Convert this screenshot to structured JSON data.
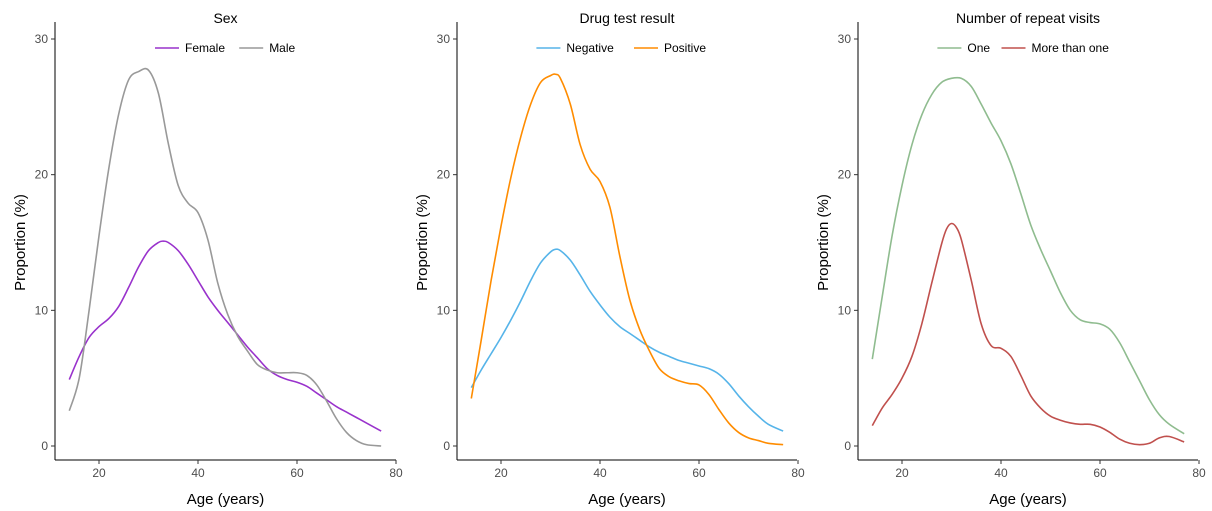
{
  "chart_data": [
    {
      "type": "line",
      "title": "Sex",
      "xlabel": "Age (years)",
      "ylabel": "Proportion (%)",
      "xlim": [
        12,
        80
      ],
      "ylim": [
        0,
        30
      ],
      "xticks": [
        20,
        40,
        60,
        80
      ],
      "yticks": [
        0,
        10,
        20,
        30
      ],
      "grid": false,
      "legend_position": "top",
      "series": [
        {
          "name": "Female",
          "color": "#9932cc",
          "x": [
            14,
            16,
            18,
            20,
            22,
            24,
            26,
            28,
            30,
            32,
            33,
            34,
            36,
            38,
            40,
            42,
            44,
            46,
            48,
            50,
            52,
            54,
            56,
            58,
            60,
            62,
            64,
            66,
            68,
            70,
            72,
            74,
            77
          ],
          "y": [
            4.9,
            6.6,
            8.0,
            8.8,
            9.4,
            10.3,
            11.7,
            13.2,
            14.4,
            15.0,
            15.1,
            15.0,
            14.4,
            13.4,
            12.2,
            11.0,
            10.0,
            9.1,
            8.2,
            7.3,
            6.5,
            5.7,
            5.2,
            4.9,
            4.7,
            4.4,
            3.9,
            3.4,
            2.9,
            2.5,
            2.1,
            1.7,
            1.1
          ]
        },
        {
          "name": "Male",
          "color": "#999999",
          "x": [
            14,
            16,
            18,
            20,
            22,
            24,
            26,
            28,
            30,
            32,
            34,
            36,
            38,
            40,
            42,
            44,
            46,
            48,
            50,
            52,
            54,
            56,
            58,
            60,
            62,
            64,
            66,
            68,
            70,
            72,
            74,
            77
          ],
          "y": [
            2.6,
            5.0,
            10.0,
            15.5,
            20.5,
            24.5,
            27.0,
            27.6,
            27.7,
            26.0,
            22.3,
            19.2,
            17.9,
            17.2,
            15.2,
            12.0,
            9.7,
            8.1,
            7.0,
            6.0,
            5.6,
            5.4,
            5.4,
            5.4,
            5.2,
            4.5,
            3.3,
            2.0,
            1.0,
            0.4,
            0.1,
            0.0
          ]
        }
      ]
    },
    {
      "type": "line",
      "title": "Drug test result",
      "xlabel": "Age (years)",
      "ylabel": "Proportion (%)",
      "xlim": [
        12,
        80
      ],
      "ylim": [
        0,
        30
      ],
      "xticks": [
        20,
        40,
        60,
        80
      ],
      "yticks": [
        0,
        10,
        20,
        30
      ],
      "grid": false,
      "legend_position": "top",
      "series": [
        {
          "name": "Negative",
          "color": "#56b4e9",
          "x": [
            14,
            16,
            18,
            20,
            22,
            24,
            26,
            28,
            30,
            31,
            32,
            34,
            36,
            38,
            40,
            42,
            44,
            46,
            48,
            50,
            52,
            54,
            56,
            58,
            60,
            62,
            64,
            66,
            68,
            70,
            72,
            74,
            77
          ],
          "y": [
            4.3,
            5.6,
            6.8,
            8.0,
            9.3,
            10.7,
            12.2,
            13.5,
            14.3,
            14.5,
            14.4,
            13.7,
            12.6,
            11.4,
            10.4,
            9.5,
            8.8,
            8.3,
            7.8,
            7.3,
            6.9,
            6.6,
            6.3,
            6.1,
            5.9,
            5.7,
            5.3,
            4.6,
            3.7,
            2.9,
            2.2,
            1.6,
            1.1
          ]
        },
        {
          "name": "Positive",
          "color": "#ff8c00",
          "x": [
            14,
            16,
            18,
            20,
            22,
            24,
            26,
            28,
            30,
            31,
            32,
            34,
            36,
            38,
            40,
            42,
            44,
            46,
            48,
            50,
            52,
            54,
            56,
            58,
            60,
            62,
            64,
            66,
            68,
            70,
            72,
            74,
            77
          ],
          "y": [
            3.5,
            7.8,
            12.2,
            16.2,
            19.8,
            22.8,
            25.2,
            26.8,
            27.3,
            27.4,
            27.1,
            25.2,
            22.2,
            20.4,
            19.5,
            17.6,
            14.0,
            10.8,
            8.6,
            7.0,
            5.7,
            5.1,
            4.8,
            4.6,
            4.5,
            3.8,
            2.7,
            1.7,
            1.0,
            0.6,
            0.4,
            0.2,
            0.1
          ]
        }
      ]
    },
    {
      "type": "line",
      "title": "Number of repeat visits",
      "xlabel": "Age (years)",
      "ylabel": "Proportion (%)",
      "xlim": [
        12,
        80
      ],
      "ylim": [
        0,
        30
      ],
      "xticks": [
        20,
        40,
        60,
        80
      ],
      "yticks": [
        0,
        10,
        20,
        30
      ],
      "grid": false,
      "legend_position": "top",
      "series": [
        {
          "name": "One",
          "color": "#8fbc8f",
          "x": [
            14,
            16,
            18,
            20,
            22,
            24,
            26,
            28,
            30,
            32,
            34,
            36,
            38,
            40,
            42,
            44,
            46,
            48,
            50,
            52,
            54,
            56,
            58,
            60,
            62,
            64,
            66,
            68,
            70,
            72,
            74,
            77
          ],
          "y": [
            6.4,
            11.0,
            15.5,
            19.2,
            22.2,
            24.4,
            25.9,
            26.8,
            27.1,
            27.1,
            26.5,
            25.2,
            23.8,
            22.5,
            20.8,
            18.6,
            16.3,
            14.5,
            12.9,
            11.3,
            10.0,
            9.3,
            9.1,
            9.0,
            8.6,
            7.6,
            6.2,
            4.8,
            3.4,
            2.3,
            1.6,
            0.9
          ]
        },
        {
          "name": "More than one",
          "color": "#c0504d",
          "x": [
            14,
            16,
            18,
            20,
            22,
            24,
            26,
            28,
            29,
            30,
            31,
            32,
            34,
            36,
            38,
            40,
            42,
            44,
            46,
            48,
            50,
            52,
            54,
            56,
            58,
            60,
            62,
            64,
            66,
            68,
            70,
            72,
            74,
            77
          ],
          "y": [
            1.5,
            2.8,
            3.8,
            5.0,
            6.6,
            9.0,
            12.0,
            14.9,
            16.0,
            16.4,
            16.1,
            15.2,
            12.2,
            9.0,
            7.4,
            7.2,
            6.6,
            5.2,
            3.7,
            2.8,
            2.2,
            1.9,
            1.7,
            1.6,
            1.6,
            1.4,
            1.0,
            0.5,
            0.2,
            0.1,
            0.2,
            0.6,
            0.7,
            0.3
          ]
        }
      ]
    }
  ]
}
